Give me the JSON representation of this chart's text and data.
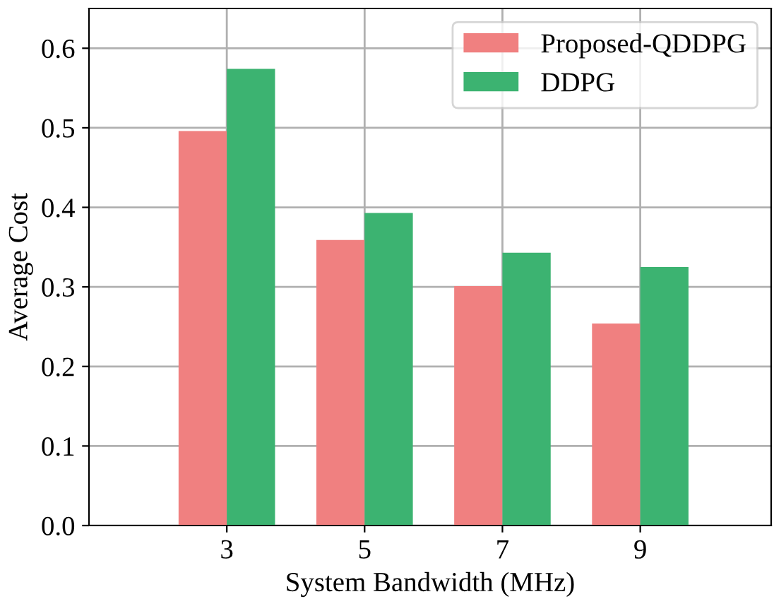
{
  "chart_data": {
    "type": "bar",
    "xlabel": "System Bandwidth (MHz)",
    "ylabel": "Average Cost",
    "categories": [
      "3",
      "5",
      "7",
      "9"
    ],
    "series": [
      {
        "name": "Proposed-QDDPG",
        "color": "#f08080",
        "values": [
          0.496,
          0.359,
          0.301,
          0.254
        ]
      },
      {
        "name": "DDPG",
        "color": "#3cb371",
        "values": [
          0.574,
          0.393,
          0.343,
          0.325
        ]
      }
    ],
    "ylim": [
      0,
      0.65
    ],
    "yticks": [
      {
        "value": 0,
        "label": "0.0"
      },
      0.1,
      0.2,
      0.3,
      0.4,
      0.5,
      0.6
    ],
    "grid": true,
    "legend": "top right"
  }
}
